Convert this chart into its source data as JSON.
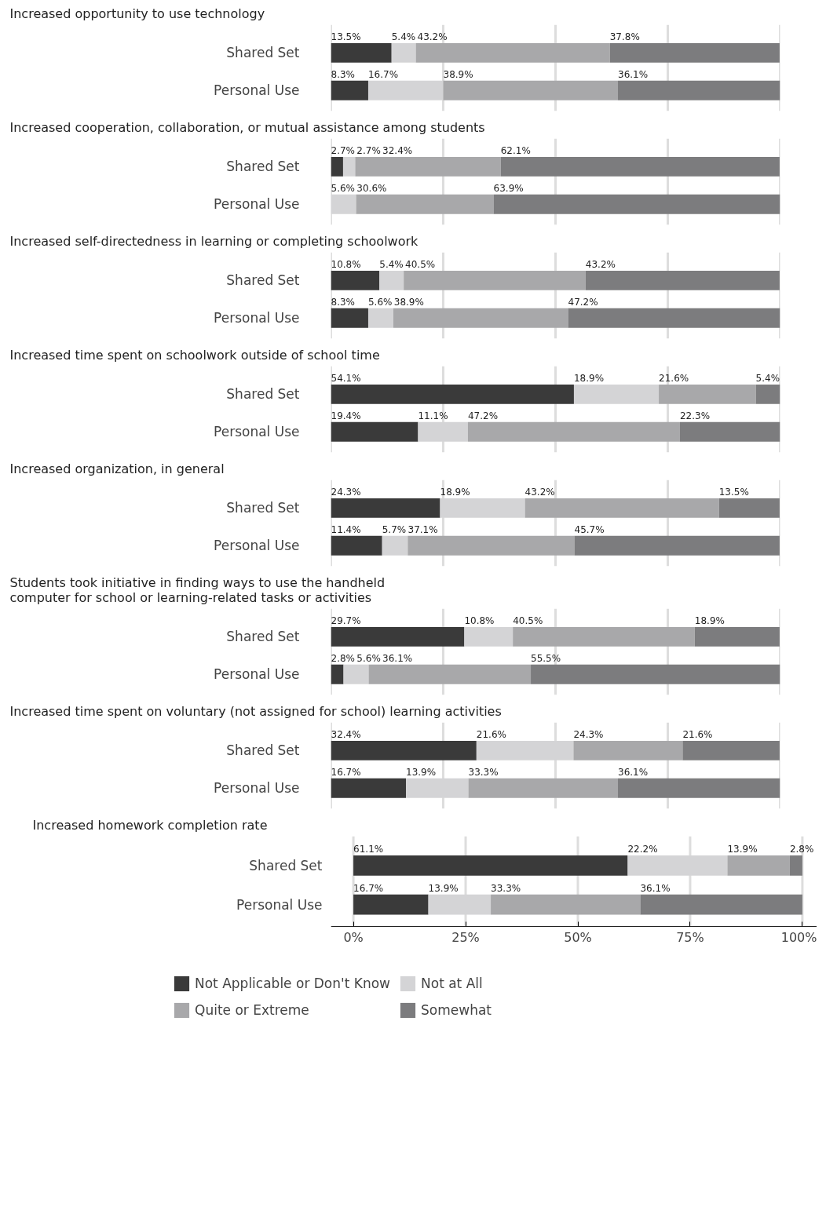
{
  "chart_data": [
    {
      "type": "bar",
      "orientation": "horizontal",
      "stacked": true,
      "title": "Increased opportunity to use technology",
      "categories": [
        "Shared Set",
        "Personal Use"
      ],
      "xlim": [
        0,
        100
      ],
      "xticks": [
        0,
        25,
        50,
        75,
        100
      ],
      "grid": "x",
      "tick_labels": "y",
      "series": [
        {
          "color": "#3a3a3a",
          "values": [
            13.5,
            8.3
          ],
          "value_labels": [
            "13.5%",
            "8.3%"
          ]
        },
        {
          "color": "#d4d4d6",
          "values": [
            5.4,
            16.7
          ],
          "value_labels": [
            "5.4%",
            "16.7%"
          ]
        },
        {
          "color": "#a8a8aa",
          "values": [
            43.2,
            38.9
          ],
          "value_labels": [
            "43.2%",
            "38.9%"
          ]
        },
        {
          "color": "#7c7c7e",
          "values": [
            37.8,
            36.1
          ],
          "value_labels": [
            "37.8%",
            "36.1%"
          ]
        }
      ]
    },
    {
      "type": "bar",
      "orientation": "horizontal",
      "stacked": true,
      "title": "Increased cooperation, collaboration, or mutual assistance among students",
      "categories": [
        "Shared Set",
        "Personal Use"
      ],
      "xlim": [
        0,
        100
      ],
      "xticks": [
        0,
        25,
        50,
        75,
        100
      ],
      "grid": "x",
      "tick_labels": "y",
      "series": [
        {
          "color": "#3a3a3a",
          "values": [
            2.7,
            0
          ],
          "value_labels": [
            "2.7%",
            null
          ]
        },
        {
          "color": "#d4d4d6",
          "values": [
            2.7,
            5.6
          ],
          "value_labels": [
            "2.7%",
            "5.6%"
          ]
        },
        {
          "color": "#a8a8aa",
          "values": [
            32.4,
            30.6
          ],
          "value_labels": [
            "32.4%",
            "30.6%"
          ]
        },
        {
          "color": "#7c7c7e",
          "values": [
            62.1,
            63.9
          ],
          "value_labels": [
            "62.1%",
            "63.9%"
          ]
        }
      ]
    },
    {
      "type": "bar",
      "orientation": "horizontal",
      "stacked": true,
      "title": "Increased self-directedness in learning or completing schoolwork",
      "categories": [
        "Shared Set",
        "Personal Use"
      ],
      "xlim": [
        0,
        100
      ],
      "xticks": [
        0,
        25,
        50,
        75,
        100
      ],
      "grid": "x",
      "tick_labels": "y",
      "series": [
        {
          "color": "#3a3a3a",
          "values": [
            10.8,
            8.3
          ],
          "value_labels": [
            "10.8%",
            "8.3%"
          ]
        },
        {
          "color": "#d4d4d6",
          "values": [
            5.4,
            5.6
          ],
          "value_labels": [
            "5.4%",
            "5.6%"
          ]
        },
        {
          "color": "#a8a8aa",
          "values": [
            40.5,
            38.9
          ],
          "value_labels": [
            "40.5%",
            "38.9%"
          ]
        },
        {
          "color": "#7c7c7e",
          "values": [
            43.2,
            47.2
          ],
          "value_labels": [
            "43.2%",
            "47.2%"
          ]
        }
      ]
    },
    {
      "type": "bar",
      "orientation": "horizontal",
      "stacked": true,
      "title": "Increased time spent on schoolwork outside of school time",
      "categories": [
        "Shared Set",
        "Personal Use"
      ],
      "xlim": [
        0,
        100
      ],
      "xticks": [
        0,
        25,
        50,
        75,
        100
      ],
      "grid": "x",
      "tick_labels": "y",
      "series": [
        {
          "color": "#3a3a3a",
          "values": [
            54.1,
            19.4
          ],
          "value_labels": [
            "54.1%",
            "19.4%"
          ]
        },
        {
          "color": "#d4d4d6",
          "values": [
            18.9,
            11.1
          ],
          "value_labels": [
            "18.9%",
            "11.1%"
          ]
        },
        {
          "color": "#a8a8aa",
          "values": [
            21.6,
            47.2
          ],
          "value_labels": [
            "21.6%",
            "47.2%"
          ]
        },
        {
          "color": "#7c7c7e",
          "values": [
            5.4,
            22.3
          ],
          "value_labels": [
            "5.4%",
            "22.3%"
          ]
        }
      ]
    },
    {
      "type": "bar",
      "orientation": "horizontal",
      "stacked": true,
      "title": "Increased organization, in general",
      "categories": [
        "Shared Set",
        "Personal Use"
      ],
      "xlim": [
        0,
        100
      ],
      "xticks": [
        0,
        25,
        50,
        75,
        100
      ],
      "grid": "x",
      "tick_labels": "y",
      "series": [
        {
          "color": "#3a3a3a",
          "values": [
            24.3,
            11.4
          ],
          "value_labels": [
            "24.3%",
            "11.4%"
          ]
        },
        {
          "color": "#d4d4d6",
          "values": [
            18.9,
            5.7
          ],
          "value_labels": [
            "18.9%",
            "5.7%"
          ]
        },
        {
          "color": "#a8a8aa",
          "values": [
            43.2,
            37.1
          ],
          "value_labels": [
            "43.2%",
            "37.1%"
          ]
        },
        {
          "color": "#7c7c7e",
          "values": [
            13.5,
            45.7
          ],
          "value_labels": [
            "13.5%",
            "45.7%"
          ]
        }
      ]
    },
    {
      "type": "bar",
      "orientation": "horizontal",
      "stacked": true,
      "title": "Students took initiative in finding ways to use the handheld computer for school or learning-related tasks or activities",
      "categories": [
        "Shared Set",
        "Personal Use"
      ],
      "xlim": [
        0,
        100
      ],
      "xticks": [
        0,
        25,
        50,
        75,
        100
      ],
      "grid": "x",
      "tick_labels": "y",
      "series": [
        {
          "color": "#3a3a3a",
          "values": [
            29.7,
            2.8
          ],
          "value_labels": [
            "29.7%",
            "2.8%"
          ]
        },
        {
          "color": "#d4d4d6",
          "values": [
            10.8,
            5.6
          ],
          "value_labels": [
            "10.8%",
            "5.6%"
          ]
        },
        {
          "color": "#a8a8aa",
          "values": [
            40.5,
            36.1
          ],
          "value_labels": [
            "40.5%",
            "36.1%"
          ]
        },
        {
          "color": "#7c7c7e",
          "values": [
            18.9,
            55.5
          ],
          "value_labels": [
            "18.9%",
            "55.5%"
          ]
        }
      ]
    },
    {
      "type": "bar",
      "orientation": "horizontal",
      "stacked": true,
      "title": "Increased time spent on voluntary (not assigned for school) learning activities",
      "categories": [
        "Shared Set",
        "Personal Use"
      ],
      "xlim": [
        0,
        100
      ],
      "xticks": [
        0,
        25,
        50,
        75,
        100
      ],
      "grid": "x",
      "tick_labels": "y",
      "series": [
        {
          "color": "#3a3a3a",
          "values": [
            32.4,
            16.7
          ],
          "value_labels": [
            "32.4%",
            "16.7%"
          ]
        },
        {
          "color": "#d4d4d6",
          "values": [
            21.6,
            13.9
          ],
          "value_labels": [
            "21.6%",
            "13.9%"
          ]
        },
        {
          "color": "#a8a8aa",
          "values": [
            24.3,
            33.3
          ],
          "value_labels": [
            "24.3%",
            "33.3%"
          ]
        },
        {
          "color": "#7c7c7e",
          "values": [
            21.6,
            36.1
          ],
          "value_labels": [
            "21.6%",
            "36.1%"
          ]
        }
      ]
    },
    {
      "type": "bar",
      "orientation": "horizontal",
      "stacked": true,
      "title": "Increased homework completion rate",
      "categories": [
        "Shared Set",
        "Personal Use"
      ],
      "xlim": [
        -5,
        105
      ],
      "xticks": [
        {
          "value": 0,
          "label": "0%"
        },
        {
          "value": 25,
          "label": "25%"
        },
        {
          "value": 50,
          "label": "50%"
        },
        {
          "value": 75,
          "label": "75%"
        },
        {
          "value": 100,
          "label": "100%"
        }
      ],
      "grid": "x",
      "legend": "bottom",
      "series": [
        {
          "name": "Not Applicable or Don't Know",
          "color": "#3a3a3a",
          "values": [
            61.1,
            16.7
          ],
          "value_labels": [
            "61.1%",
            "16.7%"
          ]
        },
        {
          "name": "Not at All",
          "color": "#d4d4d6",
          "values": [
            22.2,
            13.9
          ],
          "value_labels": [
            "22.2%",
            "13.9%"
          ]
        },
        {
          "name": "Quite or Extreme",
          "color": "#a8a8aa",
          "values": [
            13.9,
            33.3
          ],
          "value_labels": [
            "13.9%",
            "33.3%"
          ]
        },
        {
          "name": "Somewhat",
          "color": "#7c7c7e",
          "values": [
            2.8,
            36.1
          ],
          "value_labels": [
            "2.8%",
            "36.1%"
          ]
        }
      ]
    }
  ]
}
